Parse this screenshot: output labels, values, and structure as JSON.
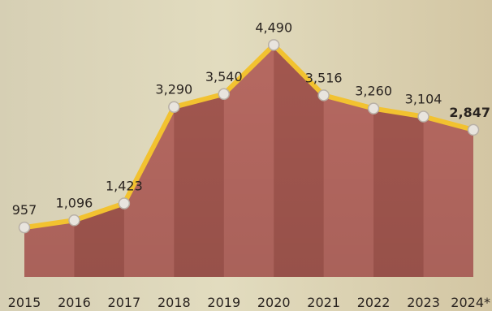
{
  "chart_data": {
    "type": "area",
    "title": "",
    "xlabel": "",
    "ylabel": "",
    "categories": [
      "2015",
      "2016",
      "2017",
      "2018",
      "2019",
      "2020",
      "2021",
      "2022",
      "2023",
      "2024*"
    ],
    "series": [
      {
        "values": [
          957,
          1096,
          1423,
          3290,
          3540,
          4490,
          3516,
          3260,
          3104,
          2847
        ]
      }
    ],
    "value_labels": [
      "957",
      "1,096",
      "1,423",
      "3,290",
      "3,540",
      "4,490",
      "3,516",
      "3,260",
      "3,104",
      "2,847"
    ],
    "highlight_index": 9,
    "ylim": [
      0,
      4700
    ],
    "grid": false,
    "colors": {
      "background": "#d9cfb0",
      "line": "#f2c230",
      "marker_fill": "#e8e4de",
      "marker_stroke": "#b8b0a6",
      "label_text": "#2a2420",
      "column_a": "#b86a62",
      "column_b": "#a45850"
    }
  }
}
